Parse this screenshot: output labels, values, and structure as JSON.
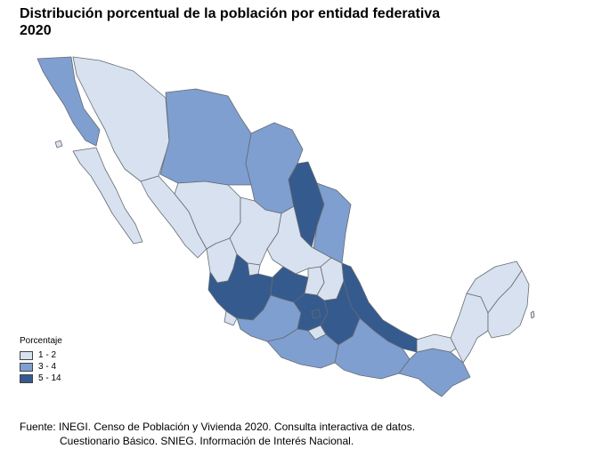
{
  "title": {
    "line1": "Distribución porcentual de la población por entidad federativa",
    "line2": "2020"
  },
  "legend": {
    "title": "Porcentaje",
    "items": [
      {
        "label": "1 - 2",
        "color": "#d7e1ef"
      },
      {
        "label": "3 - 4",
        "color": "#7f9fd0"
      },
      {
        "label": "5 - 14",
        "color": "#355a8e"
      }
    ]
  },
  "source": {
    "line1": "Fuente: INEGI. Censo de Población y Vivienda 2020. Consulta interactiva de datos.",
    "line2": "Cuestionario Básico. SNIEG. Información de Interés Nacional."
  },
  "map": {
    "category_colors": {
      "low": "#d7e1ef",
      "mid": "#7f9fd0",
      "high": "#355a8e"
    },
    "states": [
      {
        "name": "baja-california",
        "category": "mid"
      },
      {
        "name": "baja-california-sur",
        "category": "low"
      },
      {
        "name": "sonora",
        "category": "low"
      },
      {
        "name": "chihuahua",
        "category": "mid"
      },
      {
        "name": "coahuila",
        "category": "mid"
      },
      {
        "name": "nuevo-leon",
        "category": "high"
      },
      {
        "name": "tamaulipas",
        "category": "mid"
      },
      {
        "name": "sinaloa",
        "category": "low"
      },
      {
        "name": "durango",
        "category": "low"
      },
      {
        "name": "zacatecas",
        "category": "low"
      },
      {
        "name": "san-luis-potosi",
        "category": "low"
      },
      {
        "name": "nayarit",
        "category": "low"
      },
      {
        "name": "aguascalientes",
        "category": "low"
      },
      {
        "name": "jalisco",
        "category": "high"
      },
      {
        "name": "guanajuato",
        "category": "high"
      },
      {
        "name": "queretaro",
        "category": "low"
      },
      {
        "name": "hidalgo",
        "category": "low"
      },
      {
        "name": "veracruz",
        "category": "high"
      },
      {
        "name": "colima",
        "category": "low"
      },
      {
        "name": "michoacan",
        "category": "mid"
      },
      {
        "name": "estado-de-mexico",
        "category": "high"
      },
      {
        "name": "ciudad-de-mexico",
        "category": "high"
      },
      {
        "name": "morelos",
        "category": "low"
      },
      {
        "name": "tlaxcala",
        "category": "low"
      },
      {
        "name": "puebla",
        "category": "high"
      },
      {
        "name": "guerrero",
        "category": "mid"
      },
      {
        "name": "oaxaca",
        "category": "mid"
      },
      {
        "name": "chiapas",
        "category": "mid"
      },
      {
        "name": "tabasco",
        "category": "low"
      },
      {
        "name": "campeche",
        "category": "low"
      },
      {
        "name": "yucatan",
        "category": "low"
      },
      {
        "name": "quintana-roo",
        "category": "low"
      }
    ]
  }
}
